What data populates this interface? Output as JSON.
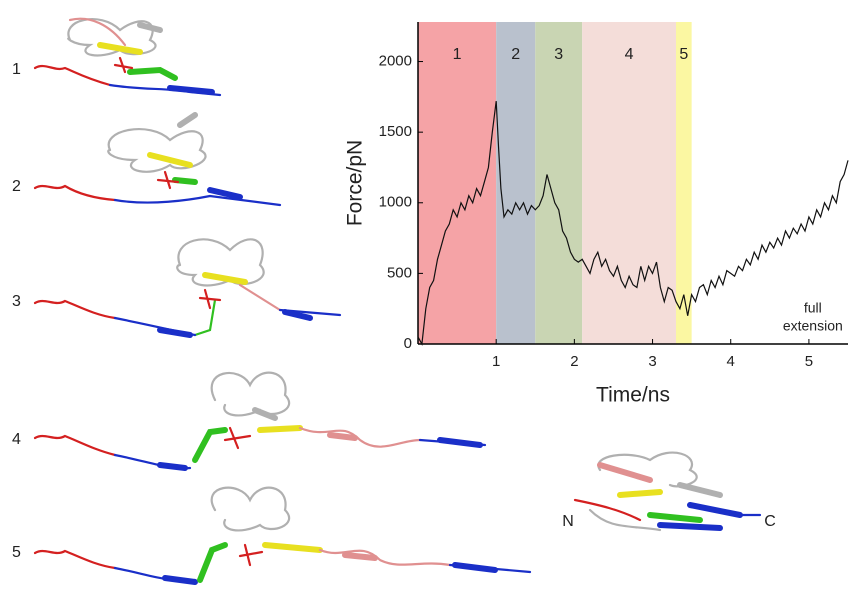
{
  "chart_data": {
    "type": "line",
    "xlabel": "Time/ns",
    "ylabel": "Force/pN",
    "xlim": [
      0,
      5.5
    ],
    "ylim": [
      0,
      2280
    ],
    "xticks": [
      1,
      2,
      3,
      4,
      5
    ],
    "yticks": [
      0,
      500,
      1000,
      1500,
      2000
    ],
    "regions": [
      {
        "label": "1",
        "start": 0,
        "end": 1,
        "color": "#f5a3a6"
      },
      {
        "label": "2",
        "start": 1,
        "end": 1.5,
        "color": "#b9c1cd"
      },
      {
        "label": "3",
        "start": 1.5,
        "end": 2.1,
        "color": "#c9d5b3"
      },
      {
        "label": "4",
        "start": 2.1,
        "end": 3.3,
        "color": "#f4ddd9"
      },
      {
        "label": "5",
        "start": 3.3,
        "end": 3.5,
        "color": "#fbf7a2"
      }
    ],
    "annotation": {
      "lines": [
        "full",
        "extension"
      ],
      "x": 5.05,
      "y": 250
    },
    "x": [
      0,
      0.05,
      0.1,
      0.15,
      0.2,
      0.25,
      0.3,
      0.35,
      0.4,
      0.45,
      0.5,
      0.55,
      0.6,
      0.65,
      0.7,
      0.75,
      0.8,
      0.85,
      0.9,
      0.95,
      1.0,
      1.03,
      1.06,
      1.1,
      1.15,
      1.2,
      1.25,
      1.3,
      1.35,
      1.4,
      1.45,
      1.5,
      1.55,
      1.6,
      1.65,
      1.7,
      1.75,
      1.8,
      1.85,
      1.9,
      1.95,
      2.0,
      2.05,
      2.1,
      2.15,
      2.2,
      2.25,
      2.3,
      2.35,
      2.4,
      2.45,
      2.5,
      2.55,
      2.6,
      2.65,
      2.7,
      2.75,
      2.8,
      2.85,
      2.9,
      2.95,
      3.0,
      3.05,
      3.1,
      3.15,
      3.2,
      3.25,
      3.3,
      3.35,
      3.4,
      3.45,
      3.5,
      3.55,
      3.6,
      3.65,
      3.7,
      3.75,
      3.8,
      3.85,
      3.9,
      3.95,
      4.0,
      4.05,
      4.1,
      4.15,
      4.2,
      4.25,
      4.3,
      4.35,
      4.4,
      4.45,
      4.5,
      4.55,
      4.6,
      4.65,
      4.7,
      4.75,
      4.8,
      4.85,
      4.9,
      4.95,
      5.0,
      5.05,
      5.1,
      5.15,
      5.2,
      5.25,
      5.3,
      5.35,
      5.4,
      5.45,
      5.5
    ],
    "series": [
      {
        "color": "#111111",
        "values": [
          50,
          0,
          250,
          400,
          450,
          600,
          700,
          800,
          850,
          950,
          900,
          1000,
          950,
          1050,
          1000,
          1100,
          1050,
          1150,
          1250,
          1500,
          1720,
          1400,
          1100,
          900,
          950,
          920,
          1000,
          950,
          1000,
          920,
          980,
          950,
          980,
          1050,
          1200,
          1100,
          1000,
          950,
          800,
          750,
          650,
          600,
          580,
          600,
          550,
          500,
          600,
          650,
          550,
          600,
          520,
          480,
          550,
          450,
          400,
          480,
          420,
          400,
          550,
          450,
          550,
          500,
          580,
          400,
          300,
          400,
          380,
          300,
          250,
          350,
          200,
          350,
          300,
          400,
          420,
          350,
          450,
          400,
          480,
          420,
          520,
          500,
          480,
          550,
          520,
          600,
          560,
          650,
          600,
          700,
          650,
          720,
          680,
          750,
          700,
          800,
          750,
          820,
          780,
          850,
          800,
          900,
          850,
          950,
          900,
          1000,
          950,
          1050,
          1000,
          1150,
          1200,
          1300
        ]
      }
    ]
  },
  "figure": {
    "structure_labels": [
      "1",
      "2",
      "3",
      "4",
      "5"
    ],
    "terminus_labels": [
      "N",
      "C"
    ]
  }
}
